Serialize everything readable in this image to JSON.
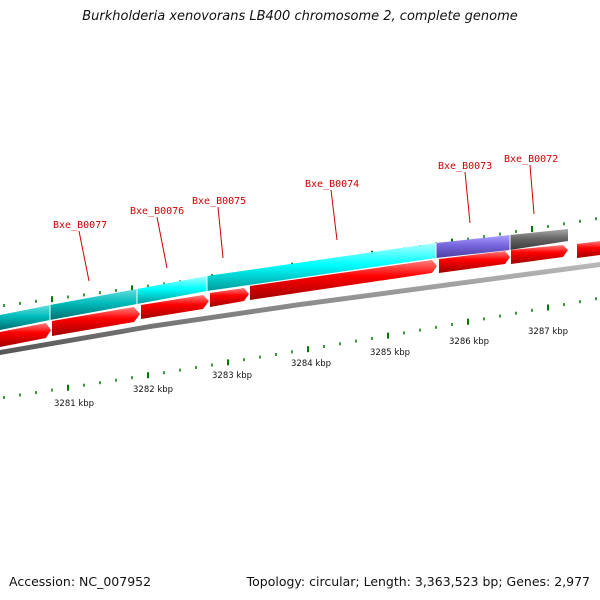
{
  "title": "Burkholderia xenovorans LB400 chromosome 2, complete genome",
  "footer": {
    "accession": "Accession: NC_007952",
    "summary": "Topology: circular; Length: 3,363,523 bp; Genes: 2,977"
  },
  "colors": {
    "cds": "#ff0000",
    "cog_cyan": "#00ffff",
    "cog_teal": "#00c0c0",
    "cog_purple": "#7766dd",
    "cog_gray": "#666666",
    "backbone": "#888888",
    "tick": "#007700",
    "label": "#cc0000"
  },
  "gene_labels": [
    "Bxe_B0077",
    "Bxe_B0076",
    "Bxe_B0075",
    "Bxe_B0074",
    "Bxe_B0073",
    "Bxe_B0072"
  ],
  "scale_labels": [
    "3281 kbp",
    "3282 kbp",
    "3283 kbp",
    "3284 kbp",
    "3285 kbp",
    "3286 kbp",
    "3287 kbp"
  ]
}
